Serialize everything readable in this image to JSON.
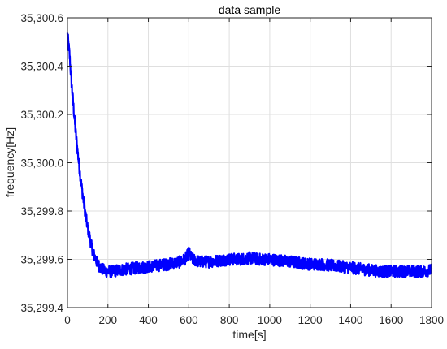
{
  "chart_data": {
    "type": "line",
    "title": "data sample",
    "xlabel": "time[s]",
    "ylabel": "frequency[Hz]",
    "xlim": [
      0,
      1800
    ],
    "ylim": [
      35299.4,
      35300.6
    ],
    "xticks": [
      0,
      200,
      400,
      600,
      800,
      1000,
      1200,
      1400,
      1600,
      1800
    ],
    "xtick_labels": [
      "0",
      "200",
      "400",
      "600",
      "800",
      "1000",
      "1200",
      "1400",
      "1600",
      "1800"
    ],
    "yticks": [
      35299.4,
      35299.6,
      35299.8,
      35300.0,
      35300.2,
      35300.4,
      35300.6
    ],
    "ytick_labels": [
      "35,299.4",
      "35,299.6",
      "35,299.8",
      "35,300.0",
      "35,300.2",
      "35,300.4",
      "35,300.6"
    ],
    "grid": true,
    "line_color": "#0000ff",
    "series": [
      {
        "x": [
          0,
          10,
          20,
          30,
          40,
          50,
          60,
          70,
          80,
          90,
          100,
          110,
          120,
          130,
          140,
          150,
          160,
          170,
          180,
          190,
          200,
          225,
          250,
          300,
          350,
          400,
          450,
          500,
          530,
          560,
          580,
          590,
          600,
          610,
          620,
          650,
          700,
          750,
          800,
          850,
          900,
          950,
          1000,
          1050,
          1100,
          1150,
          1200,
          1250,
          1300,
          1350,
          1400,
          1450,
          1500,
          1550,
          1600,
          1650,
          1700,
          1750,
          1800
        ],
        "y": [
          35300.53,
          35300.45,
          35300.33,
          35300.23,
          35300.13,
          35300.05,
          35299.97,
          35299.9,
          35299.84,
          35299.78,
          35299.73,
          35299.69,
          35299.65,
          35299.62,
          35299.6,
          35299.58,
          35299.57,
          35299.56,
          35299.555,
          35299.55,
          35299.55,
          35299.55,
          35299.555,
          35299.56,
          35299.565,
          35299.57,
          35299.575,
          35299.58,
          35299.585,
          35299.59,
          35299.6,
          35299.61,
          35299.63,
          35299.61,
          35299.6,
          35299.59,
          35299.59,
          35299.595,
          35299.6,
          35299.6,
          35299.605,
          35299.6,
          35299.6,
          35299.595,
          35299.59,
          35299.585,
          35299.58,
          35299.58,
          35299.575,
          35299.57,
          35299.565,
          35299.56,
          35299.555,
          35299.55,
          35299.55,
          35299.55,
          35299.55,
          35299.55,
          35299.555
        ]
      }
    ]
  }
}
